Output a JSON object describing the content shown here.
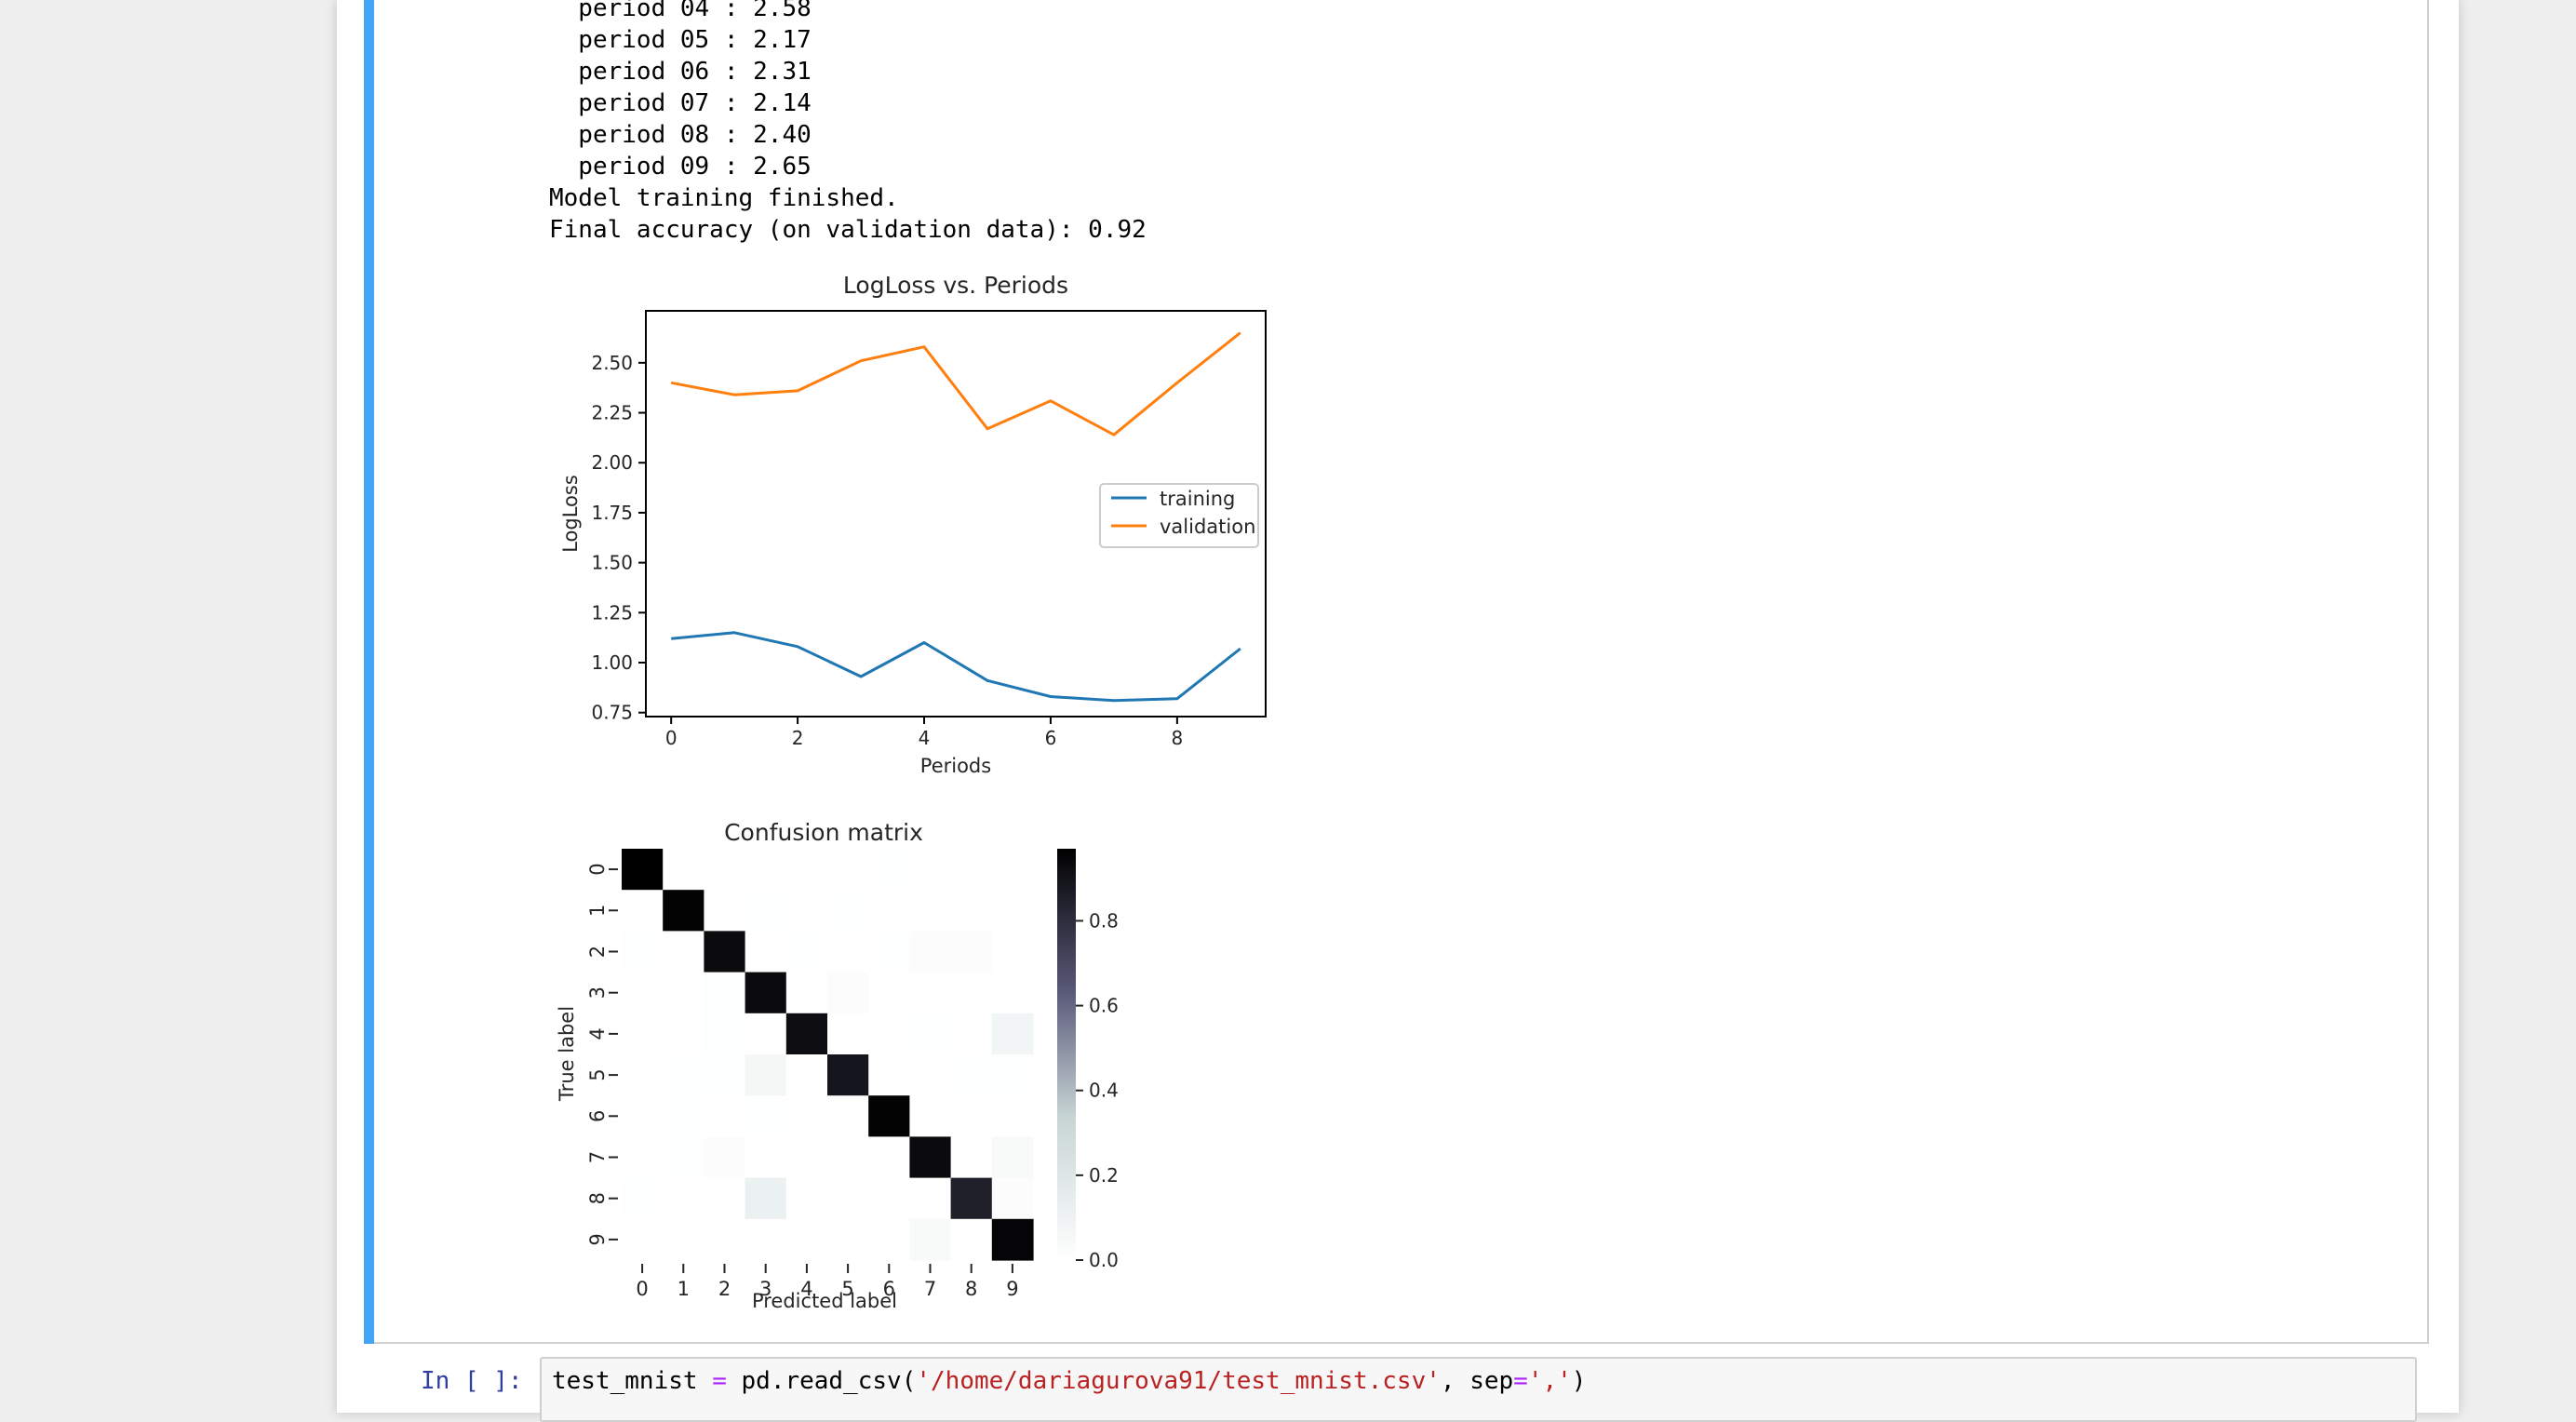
{
  "stream_output": [
    "  period 04 : 2.58",
    "  period 05 : 2.17",
    "  period 06 : 2.31",
    "  period 07 : 2.14",
    "  period 08 : 2.40",
    "  period 09 : 2.65",
    "Model training finished.",
    "Final accuracy (on validation data): 0.92"
  ],
  "chart_data": [
    {
      "type": "line",
      "title": "LogLoss vs. Periods",
      "xlabel": "Periods",
      "ylabel": "LogLoss",
      "x": [
        0,
        1,
        2,
        3,
        4,
        5,
        6,
        7,
        8,
        9
      ],
      "xticks": [
        "0",
        "2",
        "4",
        "6",
        "8"
      ],
      "yticks": [
        "0.75",
        "1.00",
        "1.25",
        "1.50",
        "1.75",
        "2.00",
        "2.25",
        "2.50"
      ],
      "ylim": [
        0.73,
        2.76
      ],
      "xlim": [
        -0.4,
        9.4
      ],
      "grid": false,
      "legend_position": "center-right",
      "series": [
        {
          "name": "training",
          "color": "#1f77b4",
          "values": [
            1.12,
            1.15,
            1.08,
            0.93,
            1.1,
            0.91,
            0.83,
            0.81,
            0.82,
            1.07
          ]
        },
        {
          "name": "validation",
          "color": "#ff7f0e",
          "values": [
            2.4,
            2.34,
            2.36,
            2.51,
            2.58,
            2.17,
            2.31,
            2.14,
            2.4,
            2.65
          ]
        }
      ]
    },
    {
      "type": "heatmap",
      "title": "Confusion matrix",
      "xlabel": "Predicted label",
      "ylabel": "True label",
      "x_categories": [
        "0",
        "1",
        "2",
        "3",
        "4",
        "5",
        "6",
        "7",
        "8",
        "9"
      ],
      "y_categories": [
        "0",
        "1",
        "2",
        "3",
        "4",
        "5",
        "6",
        "7",
        "8",
        "9"
      ],
      "colorbar_ticks": [
        "0.0",
        "0.2",
        "0.4",
        "0.6",
        "0.8"
      ],
      "colorbar_range": [
        0.0,
        0.97
      ],
      "colormap": "bone_r",
      "values": [
        [
          0.97,
          0.0,
          0.0,
          0.0,
          0.0,
          0.0,
          0.01,
          0.0,
          0.0,
          0.0
        ],
        [
          0.0,
          0.96,
          0.0,
          0.01,
          0.0,
          0.01,
          0.0,
          0.0,
          0.0,
          0.0
        ],
        [
          0.01,
          0.0,
          0.93,
          0.0,
          0.01,
          0.0,
          0.01,
          0.02,
          0.02,
          0.0
        ],
        [
          0.0,
          0.0,
          0.01,
          0.93,
          0.0,
          0.02,
          0.0,
          0.0,
          0.0,
          0.0
        ],
        [
          0.0,
          0.0,
          0.01,
          0.0,
          0.92,
          0.0,
          0.0,
          0.01,
          0.0,
          0.08
        ],
        [
          0.0,
          0.01,
          0.01,
          0.06,
          0.0,
          0.89,
          0.0,
          0.0,
          0.01,
          0.01
        ],
        [
          0.0,
          0.01,
          0.0,
          0.01,
          0.0,
          0.0,
          0.96,
          0.0,
          0.0,
          0.0
        ],
        [
          0.0,
          0.01,
          0.02,
          0.0,
          0.0,
          0.0,
          0.0,
          0.93,
          0.0,
          0.04
        ],
        [
          0.01,
          0.0,
          0.0,
          0.12,
          0.0,
          0.0,
          0.0,
          0.0,
          0.85,
          0.02
        ],
        [
          0.0,
          0.0,
          0.0,
          0.0,
          0.0,
          0.0,
          0.0,
          0.04,
          0.0,
          0.95
        ]
      ]
    }
  ],
  "input_cell": {
    "prompt": "In [ ]:",
    "code_var": "test_mnist",
    "code_eq": "=",
    "code_call": "pd.read_csv(",
    "code_path": "'/home/dariagurova91/test_mnist.csv'",
    "code_sep_kw": ", sep",
    "code_sep_eq": "=",
    "code_sep_val": "','",
    "code_close": ")"
  }
}
